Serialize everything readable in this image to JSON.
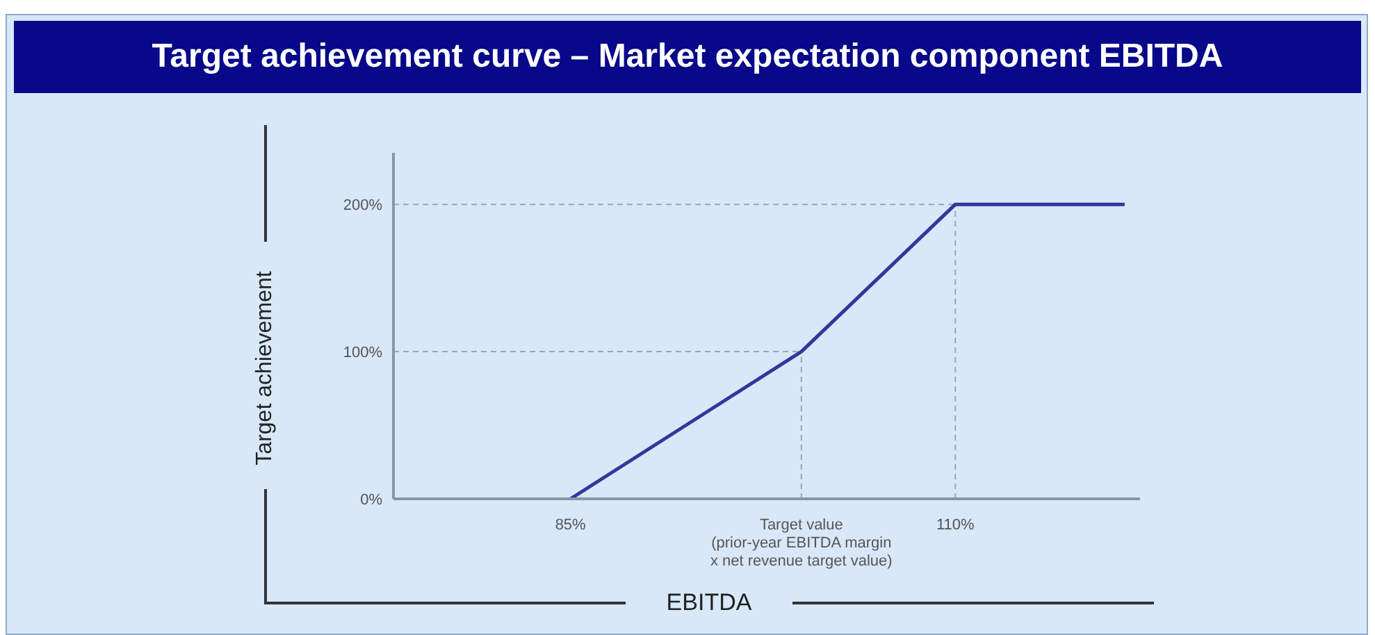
{
  "chart_data": {
    "type": "line",
    "title": "Target achievement curve – Market expectation component EBITDA",
    "xlabel": "EBITDA",
    "ylabel": "Target achievement",
    "series": [
      {
        "color": "#31379b",
        "x": [
          85,
          100,
          110,
          121
        ],
        "values": [
          0,
          100,
          200,
          200
        ]
      }
    ],
    "xlim": [
      73.5,
      122
    ],
    "xticks": [
      {
        "value": 85,
        "label": "85%"
      },
      {
        "value": 100,
        "label": "Target value\n(prior-year EBITDA margin\nx net revenue target value)"
      },
      {
        "value": 110,
        "label": "110%"
      }
    ],
    "ylim": [
      0,
      235
    ],
    "yticks": [
      {
        "value": 0,
        "label": "0%"
      },
      {
        "value": 100,
        "label": "100%"
      },
      {
        "value": 200,
        "label": "200%"
      }
    ],
    "ref_lines": [
      {
        "axis": "y",
        "value": 100,
        "color": "#9aa6b4",
        "line_style": "dashed"
      },
      {
        "axis": "y",
        "value": 200,
        "color": "#9aa6b4",
        "line_style": "dashed"
      },
      {
        "axis": "x",
        "value": 100,
        "color": "#9aa6b4",
        "line_style": "dashed"
      },
      {
        "axis": "x",
        "value": 110,
        "color": "#9aa6b4",
        "line_style": "dashed"
      }
    ]
  }
}
